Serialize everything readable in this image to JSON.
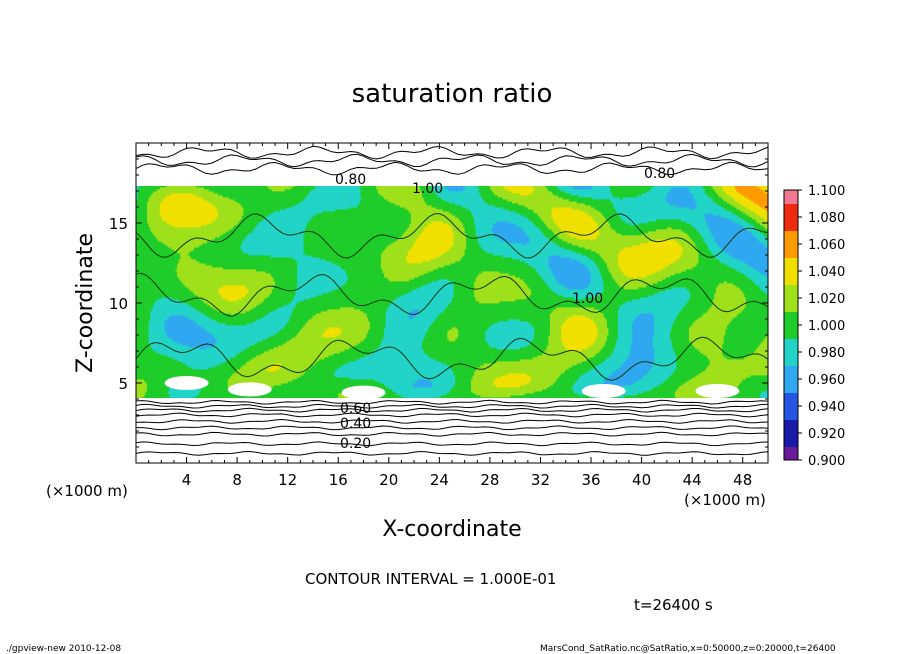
{
  "chart_data": {
    "type": "heatmap",
    "title": "saturation ratio",
    "xlabel": "X-coordinate",
    "ylabel": "Z-coordinate",
    "x_unit": "(×1000 m)",
    "y_unit": "(×1000 m)",
    "xlim": [
      0,
      50
    ],
    "ylim": [
      0,
      20
    ],
    "x_ticks": [
      4,
      8,
      12,
      16,
      20,
      24,
      28,
      32,
      36,
      40,
      44,
      48
    ],
    "y_ticks": [
      5,
      10,
      15
    ],
    "colorbar": {
      "levels": [
        "0.900",
        "0.920",
        "0.940",
        "0.960",
        "0.980",
        "1.000",
        "1.020",
        "1.040",
        "1.060",
        "1.080",
        "1.100"
      ],
      "colors": [
        "#6a1b9a",
        "#1a1aa8",
        "#2456e0",
        "#2fa8f0",
        "#22d4c8",
        "#1fcc2a",
        "#9fe01a",
        "#f0e000",
        "#ff9a00",
        "#ee2a10",
        "#f07890"
      ]
    },
    "contour_labels": [
      "0.20",
      "0.40",
      "0.60",
      "0.80",
      "1.00"
    ],
    "contour_interval_text": "CONTOUR INTERVAL = 1.000E-01",
    "time_text": "t=26400 s",
    "footer_left": "./gpview-new  2010-12-08",
    "footer_right": "MarsCond_SatRatio.nc@SatRatio,x=0:50000,z=0:20000,t=26400"
  }
}
